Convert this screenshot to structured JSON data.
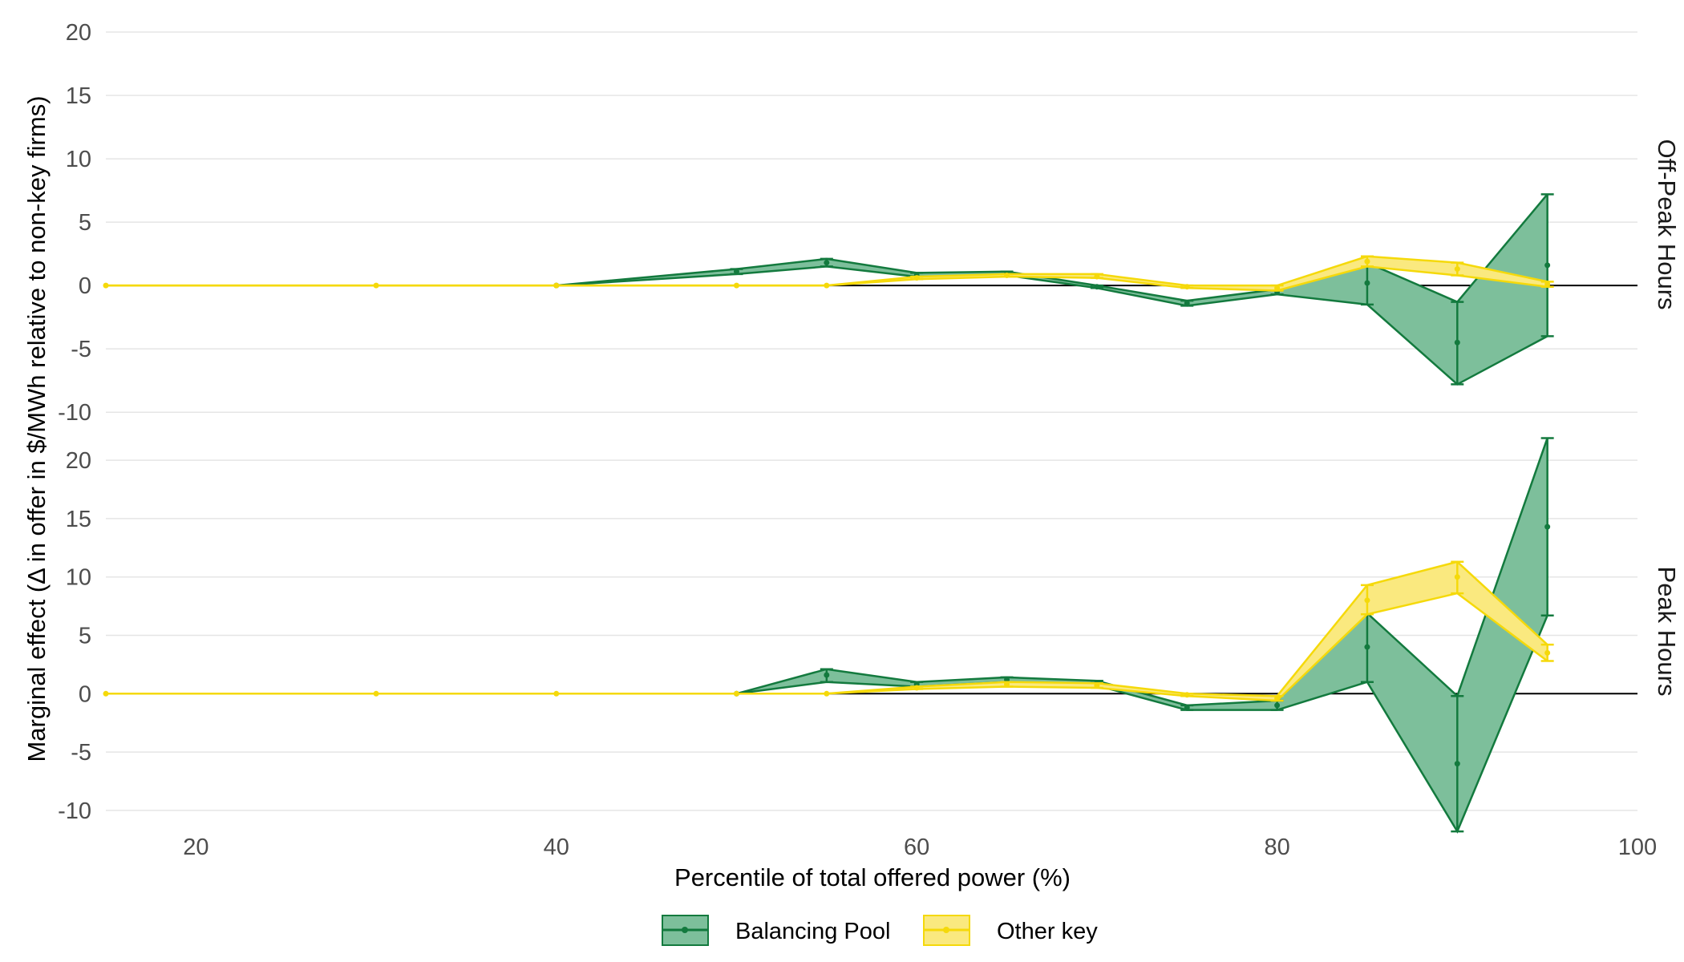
{
  "chart_data": {
    "type": "line",
    "xlabel": "Percentile of total offered power (%)",
    "ylabel": "Marginal effect (Δ in offer in $/MWh relative to non-key firms)",
    "xlim": [
      15,
      100
    ],
    "x_ticks": [
      20,
      40,
      60,
      80,
      100
    ],
    "grid": "horizontal",
    "legend_position": "bottom",
    "colors": {
      "Balancing Pool": "#137a3e",
      "Balancing Pool fill": "#7dbf9b",
      "Other key": "#f5d90a",
      "Other key fill": "#fae97f"
    },
    "legend": [
      "Balancing Pool",
      "Other key"
    ],
    "facets": [
      {
        "label": "Off-Peak Hours",
        "ylim": [
          -11,
          20
        ],
        "y_ticks": [
          -10,
          -5,
          0,
          5,
          10,
          15,
          20
        ],
        "series": [
          {
            "name": "Balancing Pool",
            "x": [
              40,
              50,
              55,
              60,
              65,
              70,
              75,
              80,
              85,
              90,
              95
            ],
            "estimate": [
              0,
              1.1,
              1.8,
              0.8,
              0.9,
              -0.1,
              -1.4,
              -0.5,
              0.2,
              -4.5,
              1.6
            ],
            "lower": [
              0,
              0.9,
              1.5,
              0.7,
              0.8,
              -0.2,
              -1.6,
              -0.7,
              -1.5,
              -7.8,
              -4.0
            ],
            "upper": [
              0,
              1.3,
              2.1,
              1.0,
              1.1,
              0.0,
              -1.2,
              -0.3,
              1.8,
              -1.3,
              7.2
            ]
          },
          {
            "name": "Other key",
            "x": [
              15,
              30,
              40,
              50,
              55,
              60,
              65,
              70,
              75,
              80,
              85,
              90,
              95
            ],
            "estimate": [
              0,
              0,
              0,
              0,
              0,
              0.6,
              0.8,
              0.7,
              -0.1,
              -0.2,
              1.9,
              1.3,
              0.1
            ],
            "lower": [
              0,
              0,
              0,
              0,
              0,
              0.5,
              0.7,
              0.6,
              -0.2,
              -0.4,
              1.5,
              0.8,
              -0.1
            ],
            "upper": [
              0,
              0,
              0,
              0,
              0,
              0.7,
              0.9,
              0.9,
              0.0,
              0.0,
              2.3,
              1.8,
              0.3
            ]
          }
        ]
      },
      {
        "label": "Peak Hours",
        "ylim": [
          -12,
          22
        ],
        "y_ticks": [
          -10,
          -5,
          0,
          5,
          10,
          15,
          20
        ],
        "series": [
          {
            "name": "Balancing Pool",
            "x": [
              50,
              55,
              60,
              65,
              70,
              75,
              80,
              85,
              90,
              95
            ],
            "estimate": [
              0,
              1.6,
              0.8,
              1.2,
              0.9,
              -1.2,
              -1.0,
              4.0,
              -6.0,
              14.3
            ],
            "lower": [
              0,
              1.0,
              0.6,
              1.0,
              0.7,
              -1.4,
              -1.4,
              1.0,
              -11.8,
              6.7
            ],
            "upper": [
              0,
              2.1,
              1.0,
              1.4,
              1.1,
              -1.0,
              -0.6,
              6.9,
              -0.2,
              21.9
            ]
          },
          {
            "name": "Other key",
            "x": [
              15,
              30,
              40,
              50,
              55,
              60,
              65,
              70,
              75,
              80,
              85,
              90,
              95
            ],
            "estimate": [
              0,
              0,
              0,
              0,
              0,
              0.5,
              0.8,
              0.7,
              -0.1,
              -0.4,
              8.0,
              10.0,
              3.5
            ],
            "lower": [
              0,
              0,
              0,
              0,
              0,
              0.4,
              0.6,
              0.5,
              -0.2,
              -0.6,
              6.8,
              8.6,
              2.8
            ],
            "upper": [
              0,
              0,
              0,
              0,
              0,
              0.6,
              1.0,
              0.9,
              0.0,
              -0.2,
              9.3,
              11.3,
              4.2
            ]
          }
        ]
      }
    ]
  }
}
